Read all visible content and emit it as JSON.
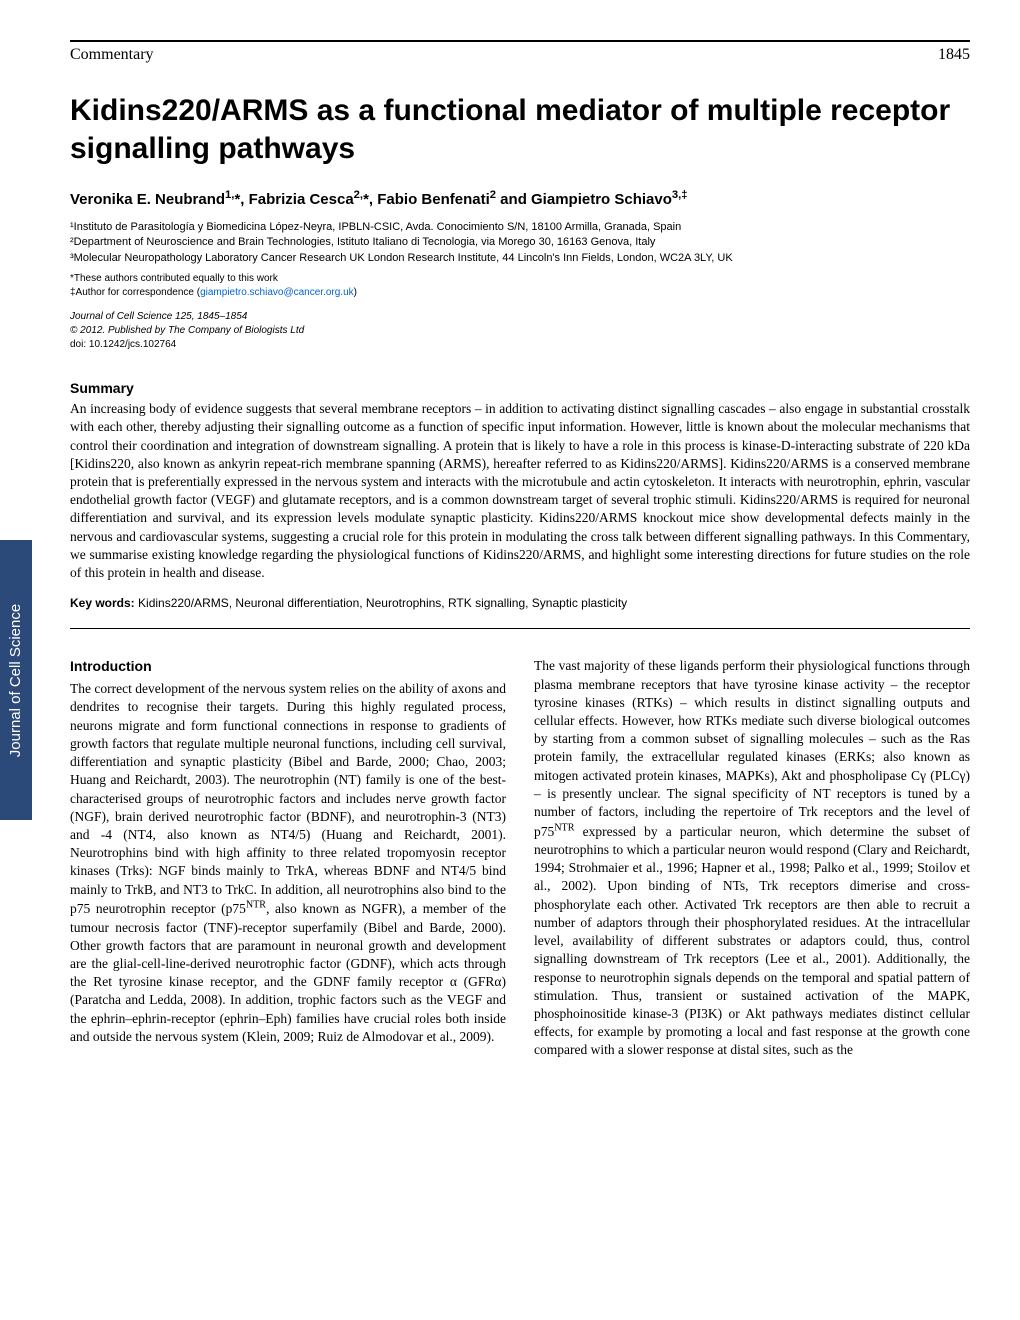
{
  "header": {
    "section_label": "Commentary",
    "page_number": "1845"
  },
  "sidebar": {
    "label": "Journal of Cell Science",
    "bg_color": "#2b4a7a",
    "text_color": "#ffffff"
  },
  "title": "Kidins220/ARMS as a functional mediator of multiple receptor signalling pathways",
  "authors_html": "Veronika E. Neubrand<sup>1,</sup>*, Fabrizia Cesca<sup>2,</sup>*, Fabio Benfenati<sup>2</sup> and Giampietro Schiavo<sup>3,‡</sup>",
  "affiliations": [
    "¹Instituto de Parasitología y Biomedicina López-Neyra, IPBLN-CSIC, Avda. Conocimiento S/N, 18100 Armilla, Granada, Spain",
    "²Department of Neuroscience and Brain Technologies, Istituto Italiano di Tecnologia, via Morego 30, 16163 Genova, Italy",
    "³Molecular Neuropathology Laboratory Cancer Research UK London Research Institute, 44 Lincoln's Inn Fields, London, WC2A 3LY, UK"
  ],
  "notes": {
    "equal_contrib": "*These authors contributed equally to this work",
    "correspondence_prefix": "‡Author for correspondence (",
    "correspondence_email": "giampietro.schiavo@cancer.org.uk",
    "correspondence_suffix": ")"
  },
  "journal": {
    "citation": "Journal of Cell Science 125, 1845–1854",
    "copyright": "© 2012. Published by The Company of Biologists Ltd",
    "doi": "doi: 10.1242/jcs.102764"
  },
  "summary": {
    "heading": "Summary",
    "text": "An increasing body of evidence suggests that several membrane receptors – in addition to activating distinct signalling cascades – also engage in substantial crosstalk with each other, thereby adjusting their signalling outcome as a function of specific input information. However, little is known about the molecular mechanisms that control their coordination and integration of downstream signalling. A protein that is likely to have a role in this process is kinase-D-interacting substrate of 220 kDa [Kidins220, also known as ankyrin repeat-rich membrane spanning (ARMS), hereafter referred to as Kidins220/ARMS]. Kidins220/ARMS is a conserved membrane protein that is preferentially expressed in the nervous system and interacts with the microtubule and actin cytoskeleton. It interacts with neurotrophin, ephrin, vascular endothelial growth factor (VEGF) and glutamate receptors, and is a common downstream target of several trophic stimuli. Kidins220/ARMS is required for neuronal differentiation and survival, and its expression levels modulate synaptic plasticity. Kidins220/ARMS knockout mice show developmental defects mainly in the nervous and cardiovascular systems, suggesting a crucial role for this protein in modulating the cross talk between different signalling pathways. In this Commentary, we summarise existing knowledge regarding the physiological functions of Kidins220/ARMS, and highlight some interesting directions for future studies on the role of this protein in health and disease."
  },
  "keywords": {
    "label": "Key words:",
    "text": " Kidins220/ARMS, Neuronal differentiation, Neurotrophins, RTK signalling, Synaptic plasticity"
  },
  "introduction": {
    "heading": "Introduction",
    "col1_html": "The correct development of the nervous system relies on the ability of axons and dendrites to recognise their targets. During this highly regulated process, neurons migrate and form functional connections in response to gradients of growth factors that regulate multiple neuronal functions, including cell survival, differentiation and synaptic plasticity (Bibel and Barde, 2000; Chao, 2003; Huang and Reichardt, 2003). The neurotrophin (NT) family is one of the best-characterised groups of neurotrophic factors and includes nerve growth factor (NGF), brain derived neurotrophic factor (BDNF), and neurotrophin-3 (NT3) and -4 (NT4, also known as NT4/5) (Huang and Reichardt, 2001). Neurotrophins bind with high affinity to three related tropomyosin receptor kinases (Trks): NGF binds mainly to TrkA, whereas BDNF and NT4/5 bind mainly to TrkB, and NT3 to TrkC. In addition, all neurotrophins also bind to the p75 neurotrophin receptor (p75<sup>NTR</sup>, also known as NGFR), a member of the tumour necrosis factor (TNF)-receptor superfamily (Bibel and Barde, 2000). Other growth factors that are paramount in neuronal growth and development are the glial-cell-line-derived neurotrophic factor (GDNF), which acts through the Ret tyrosine kinase receptor, and the GDNF family receptor α (GFRα) (Paratcha and Ledda, 2008). In addition, trophic factors such as the VEGF and the ephrin–ephrin-receptor (ephrin–Eph) families have crucial roles both inside and outside the nervous system (Klein, 2009; Ruiz de Almodovar et al., 2009).",
    "col2_html": "The vast majority of these ligands perform their physiological functions through plasma membrane receptors that have tyrosine kinase activity – the receptor tyrosine kinases (RTKs) – which results in distinct signalling outputs and cellular effects. However, how RTKs mediate such diverse biological outcomes by starting from a common subset of signalling molecules – such as the Ras protein family, the extracellular regulated kinases (ERKs; also known as mitogen activated protein kinases, MAPKs), Akt and phospholipase Cγ (PLCγ) – is presently unclear. The signal specificity of NT receptors is tuned by a number of factors, including the repertoire of Trk receptors and the level of p75<sup>NTR</sup> expressed by a particular neuron, which determine the subset of neurotrophins to which a particular neuron would respond (Clary and Reichardt, 1994; Strohmaier et al., 1996; Hapner et al., 1998; Palko et al., 1999; Stoilov et al., 2002). Upon binding of NTs, Trk receptors dimerise and cross-phosphorylate each other. Activated Trk receptors are then able to recruit a number of adaptors through their phosphorylated residues. At the intracellular level, availability of different substrates or adaptors could, thus, control signalling downstream of Trk receptors (Lee et al., 2001). Additionally, the response to neurotrophin signals depends on the temporal and spatial pattern of stimulation. Thus, transient or sustained activation of the MAPK, phosphoinositide kinase-3 (PI3K) or Akt pathways mediates distinct cellular effects, for example by promoting a local and fast response at the growth cone compared with a slower response at distal sites, such as the"
  }
}
